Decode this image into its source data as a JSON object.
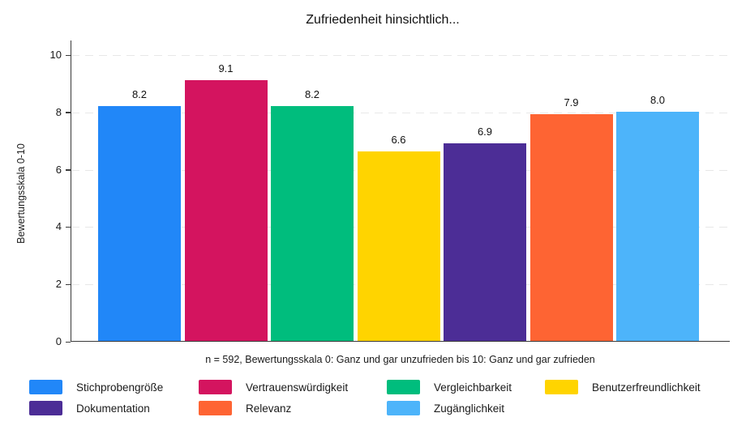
{
  "chart_data": {
    "type": "bar",
    "title": "Zufriedenheit hinsichtlich...",
    "ylabel": "Bewertungsskala 0-10",
    "xlabel": "",
    "footnote": "n = 592, Bewertungsskala 0: Ganz und gar unzufrieden bis 10: Ganz und gar zufrieden",
    "categories": [
      "Stichprobengröße",
      "Vertrauenswürdigkeit",
      "Vergleichbarkeit",
      "Benutzerfreundlichkeit",
      "Dokumentation",
      "Relevanz",
      "Zugänglichkeit"
    ],
    "values": [
      8.2,
      9.1,
      8.2,
      6.6,
      6.9,
      7.9,
      8.0
    ],
    "value_labels": [
      "8.2",
      "9.1",
      "8.2",
      "6.6",
      "6.9",
      "7.9",
      "8.0"
    ],
    "bar_colors": [
      "#2187f8",
      "#d4145f",
      "#00bd7d",
      "#ffd400",
      "#4c2d96",
      "#fe6433",
      "#4db4fa"
    ],
    "ylim": [
      0,
      10
    ],
    "yticks": [
      0,
      2,
      4,
      6,
      8,
      10
    ],
    "grid": true,
    "gridline_style": "dashed",
    "legend_position": "bottom",
    "axis_color": "#3a3a3a",
    "gridline_color": "#e8e8e8"
  }
}
